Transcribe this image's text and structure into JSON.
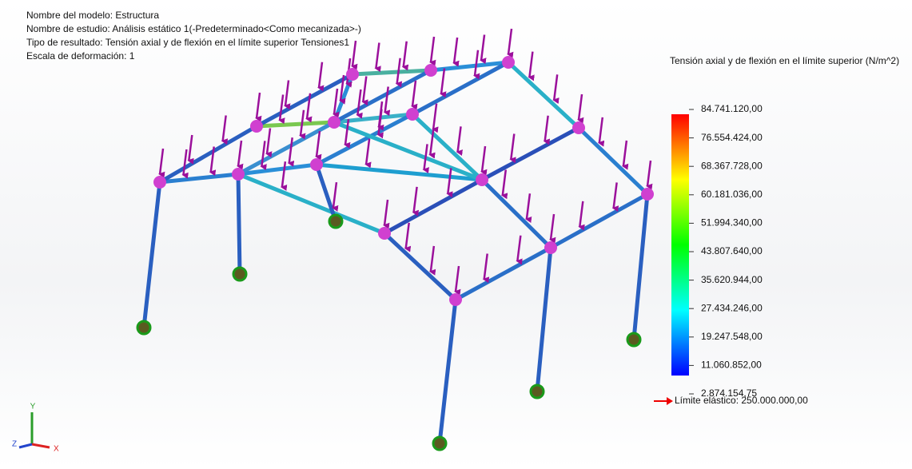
{
  "header": {
    "lines": [
      "Nombre del modelo: Estructura",
      "Nombre de estudio: Análisis estático 1(-Predeterminado<Como mecanizada>-)",
      "Tipo de resultado: Tensión axial y de flexión en el límite superior Tensiones1",
      "Escala de deformación: 1"
    ]
  },
  "legend": {
    "title": "Tensión axial y de flexión en el límite superior (N/m^2)",
    "labels": [
      "84.741.120,00",
      "76.554.424,00",
      "68.367.728,00",
      "60.181.036,00",
      "51.994.340,00",
      "43.807.640,00",
      "35.620.944,00",
      "27.434.246,00",
      "19.247.548,00",
      "11.060.852,00",
      "2.874.154,75"
    ],
    "yield_limit": "Límite elástico: 250.000.000,00"
  },
  "triad": {
    "x": "X",
    "y": "Y",
    "z": "Z"
  }
}
